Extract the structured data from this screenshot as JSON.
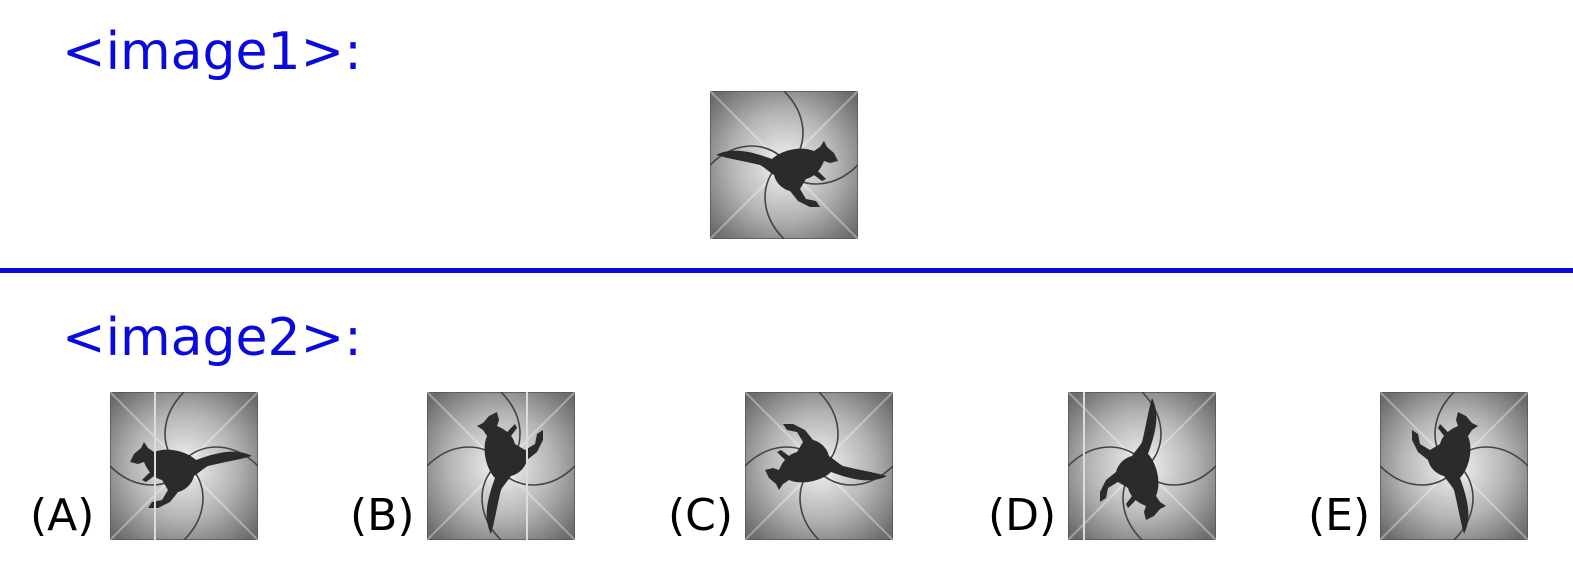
{
  "sections": {
    "image1_label": "<image1>:",
    "image2_label": "<image2>:"
  },
  "reference": {
    "icon": "kangaroo-tile-icon",
    "rotation_deg": 0,
    "mirrored": false
  },
  "options": [
    {
      "label": "(A)",
      "rotation_deg": 0,
      "mirrored": true
    },
    {
      "label": "(B)",
      "rotation_deg": -90,
      "mirrored": false
    },
    {
      "label": "(C)",
      "rotation_deg": 180,
      "mirrored": false
    },
    {
      "label": "(D)",
      "rotation_deg": 90,
      "mirrored": false
    },
    {
      "label": "(E)",
      "rotation_deg": 90,
      "mirrored": true
    }
  ],
  "colors": {
    "label_blue": "#0a0adc",
    "divider_blue": "#0a0adc",
    "tile_dark": "#6e6e6e",
    "tile_light": "#f2f2f2",
    "kangaroo": "#2b2b2b"
  }
}
